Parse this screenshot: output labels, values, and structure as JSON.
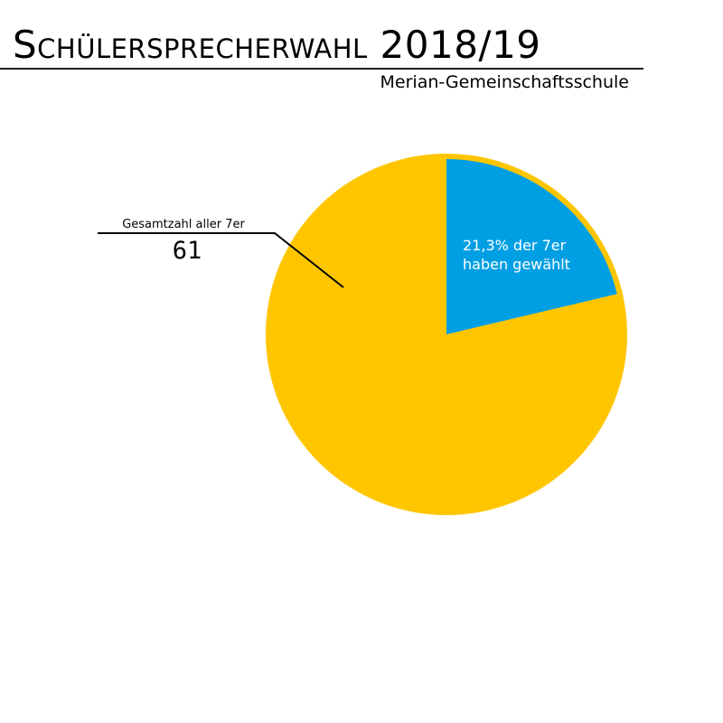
{
  "header": {
    "title": "Schülersprecherwahl 2018/19",
    "subtitle": "Merian-Gemeinschaftsschule"
  },
  "colors": {
    "voted": "#009fe3",
    "rest": "#ffc600",
    "text_on_slice": "#ffffff"
  },
  "chart_data": {
    "type": "pie",
    "title": "Schülersprecherwahl 2018/19",
    "subtitle": "Merian-Gemeinschaftsschule",
    "total": 61,
    "slices": [
      {
        "value": 21.3,
        "color": "#009fe3"
      },
      {
        "value": 78.7,
        "color": "#ffc600"
      }
    ],
    "labels": {
      "slice_voted_line1": "21,3% der 7er",
      "slice_voted_line2": "haben gewählt",
      "callout_label": "Gesamtzahl aller 7er",
      "callout_value": "61"
    }
  }
}
